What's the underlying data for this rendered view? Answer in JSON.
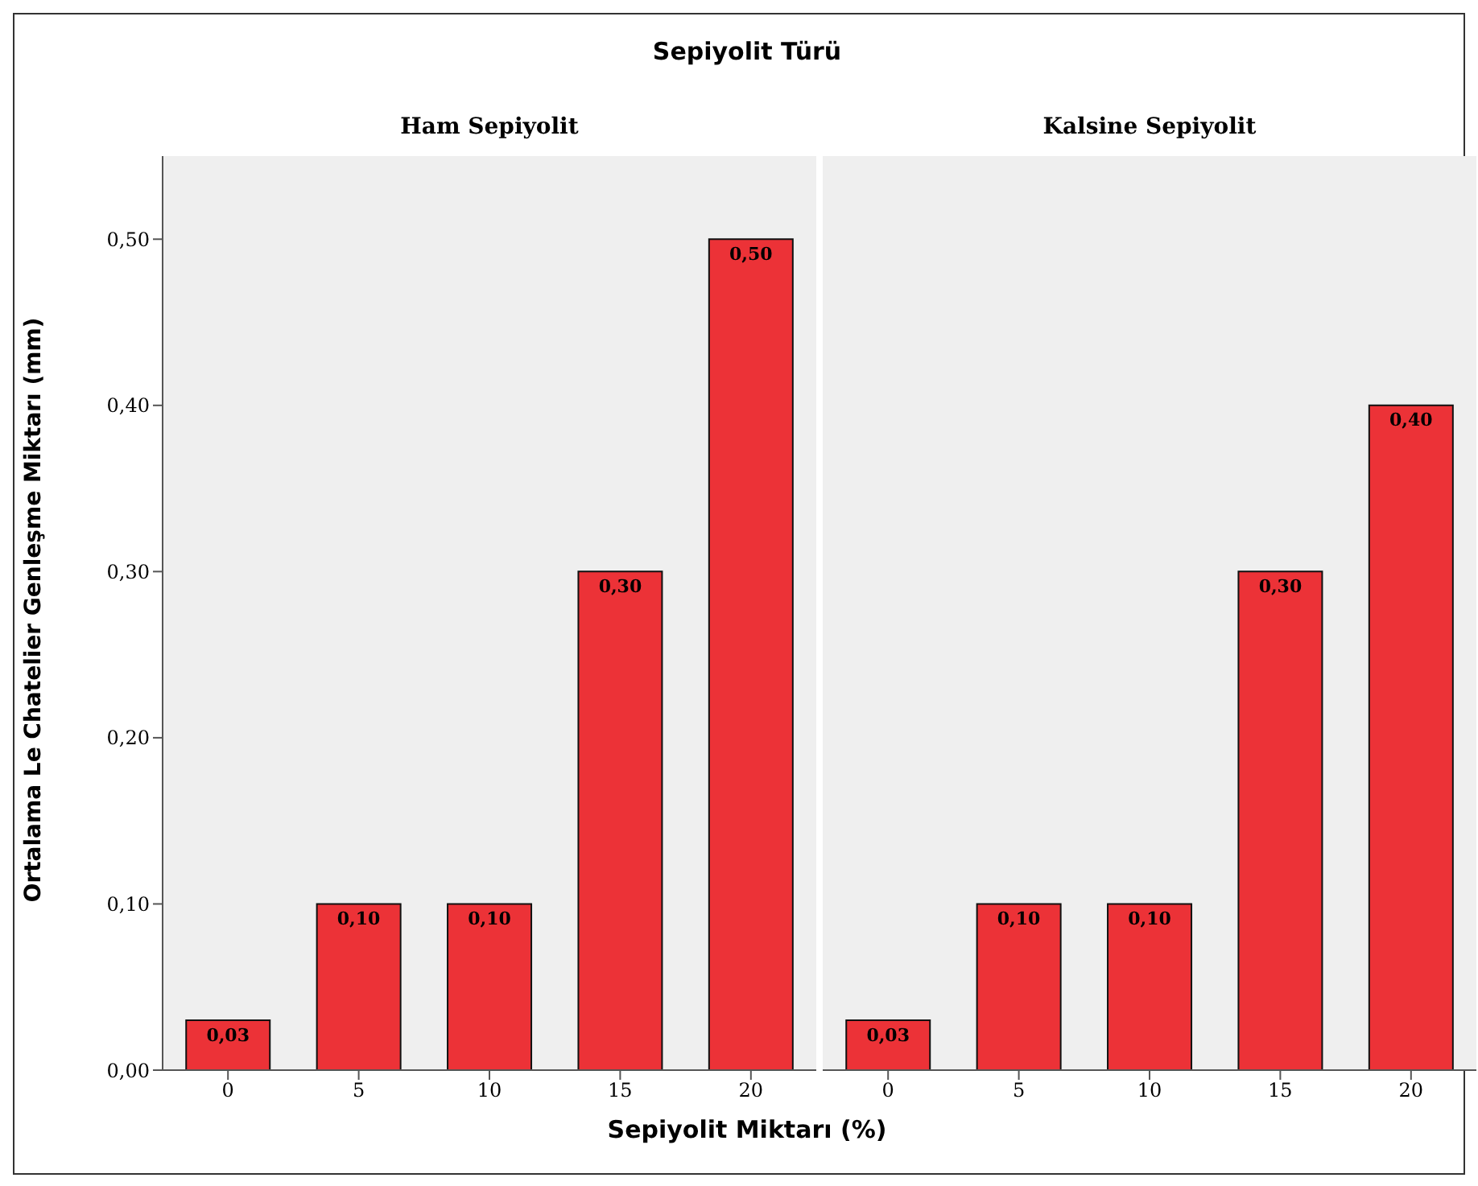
{
  "chart_data": [
    {
      "type": "bar",
      "title": "Ham Sepiyolit",
      "annotations": [
        "Sepiyolit Türü"
      ],
      "xlabel": "Sepiyolit Miktarı (%)",
      "ylabel": "Ortalama Le Chatelier Genleşme Miktarı (mm)",
      "categories": [
        "0",
        "5",
        "10",
        "15",
        "20"
      ],
      "values": [
        0.03,
        0.1,
        0.1,
        0.3,
        0.5
      ],
      "value_labels": [
        "0,03",
        "0,10",
        "0,10",
        "0,30",
        "0,50"
      ],
      "color": "#ec3237",
      "ylim": [
        0,
        0.55
      ],
      "yticks": [
        {
          "value": 0,
          "label": "0,00"
        },
        {
          "value": 0.1,
          "label": "0,10"
        },
        {
          "value": 0.2,
          "label": "0,20"
        },
        {
          "value": 0.3,
          "label": "0,30"
        },
        {
          "value": 0.4,
          "label": "0,40"
        },
        {
          "value": 0.5,
          "label": "0,50"
        }
      ]
    },
    {
      "type": "bar",
      "title": "Kalsine Sepiyolit",
      "categories": [
        "0",
        "5",
        "10",
        "15",
        "20"
      ],
      "values": [
        0.03,
        0.1,
        0.1,
        0.3,
        0.4
      ],
      "value_labels": [
        "0,03",
        "0,10",
        "0,10",
        "0,30",
        "0,40"
      ],
      "color": "#ec3237",
      "ylim": [
        0,
        0.55
      ],
      "tick_labels": "x"
    }
  ]
}
